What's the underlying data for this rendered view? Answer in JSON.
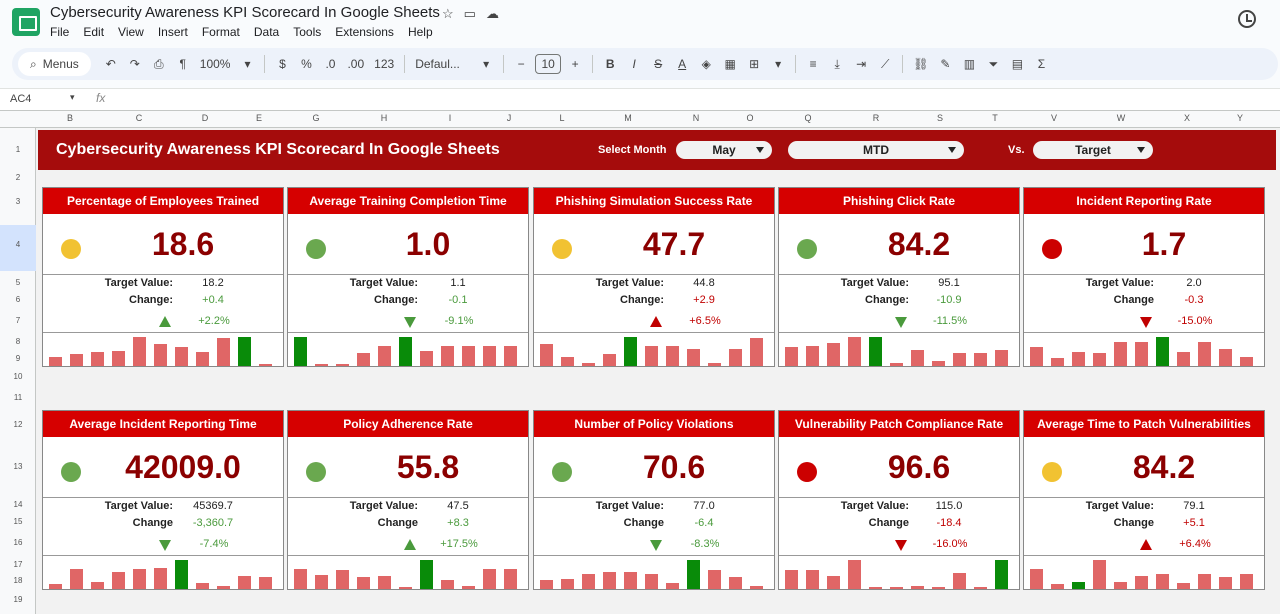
{
  "app": {
    "title": "Cybersecurity Awareness KPI Scorecard In Google Sheets",
    "menu": [
      "File",
      "Edit",
      "View",
      "Insert",
      "Format",
      "Data",
      "Tools",
      "Extensions",
      "Help"
    ]
  },
  "toolbar": {
    "menus_label": "Menus",
    "zoom": "100%",
    "currency": "$",
    "percent": "%",
    "dec_decrease": ".0",
    "dec_increase": ".00",
    "number_format": "123",
    "font": "Defaul...",
    "font_size": "10",
    "minus": "−",
    "plus": "+",
    "bold": "B",
    "italic": "I",
    "strike": "S",
    "text_color": "A",
    "sigma": "Σ"
  },
  "formula_bar": {
    "cell": "AC4",
    "fx": "fx"
  },
  "columns": [
    "B",
    "C",
    "D",
    "E",
    "G",
    "H",
    "I",
    "J",
    "L",
    "M",
    "N",
    "O",
    "Q",
    "R",
    "S",
    "T",
    "V",
    "W",
    "X",
    "Y"
  ],
  "rows": [
    "1",
    "2",
    "3",
    "4",
    "5",
    "6",
    "7",
    "8",
    "9",
    "10",
    "11",
    "12",
    "13",
    "14",
    "15",
    "16",
    "17",
    "18",
    "19"
  ],
  "banner": {
    "title": "Cybersecurity Awareness KPI Scorecard In Google Sheets",
    "select_month_label": "Select Month",
    "month": "May",
    "period": "MTD",
    "vs_label": "Vs.",
    "comparison": "Target"
  },
  "colors": {
    "green": "#6aa84f",
    "yellow": "#f1c232",
    "red": "#cc0000",
    "header_red": "#d60000",
    "banner": "#a50c0c"
  },
  "kpis": [
    {
      "title": "Percentage of Employees Trained",
      "value": "18.6",
      "status": "yellow",
      "target_label": "Target Value:",
      "target": "18.2",
      "change_label": "Change:",
      "change": "+0.4",
      "change_sign": "pos",
      "pct": "+2.2%",
      "pct_sign": "pos",
      "trend": "up",
      "spark": [
        8,
        10,
        12,
        13,
        25,
        19,
        16,
        12,
        24,
        25,
        2
      ],
      "spark_hi": 9
    },
    {
      "title": "Average Training Completion Time",
      "value": "1.0",
      "status": "green",
      "target_label": "Target Value:",
      "target": "1.1",
      "change_label": "Change:",
      "change": "-0.1",
      "change_sign": "pos",
      "pct": "-9.1%",
      "pct_sign": "pos",
      "trend": "down",
      "spark": [
        25,
        2,
        2,
        11,
        17,
        25,
        13,
        17,
        17,
        17,
        17
      ],
      "spark_hi": [
        0,
        5
      ]
    },
    {
      "title": "Phishing Simulation Success Rate",
      "value": "47.7",
      "status": "yellow",
      "target_label": "Target Value:",
      "target": "44.8",
      "change_label": "Change:",
      "change": "+2.9",
      "change_sign": "neg",
      "pct": "+6.5%",
      "pct_sign": "neg",
      "trend": "up",
      "spark": [
        19,
        8,
        3,
        10,
        25,
        17,
        17,
        15,
        3,
        15,
        24
      ],
      "spark_hi": 4
    },
    {
      "title": "Phishing Click Rate",
      "value": "84.2",
      "status": "green",
      "target_label": "Target Value:",
      "target": "95.1",
      "change_label": "Change:",
      "change": "-10.9",
      "change_sign": "pos",
      "pct": "-11.5%",
      "pct_sign": "pos",
      "trend": "down",
      "spark": [
        16,
        17,
        20,
        25,
        25,
        3,
        14,
        4,
        11,
        11,
        14
      ],
      "spark_hi": 4
    },
    {
      "title": "Incident Reporting Rate",
      "value": "1.7",
      "status": "red",
      "target_label": "Target Value:",
      "target": "2.0",
      "change_label": "Change",
      "change": "-0.3",
      "change_sign": "neg",
      "pct": "-15.0%",
      "pct_sign": "neg",
      "trend": "down",
      "spark": [
        16,
        7,
        12,
        11,
        21,
        21,
        25,
        12,
        21,
        15,
        8
      ],
      "spark_hi": 6
    },
    {
      "title": "Average Incident Reporting Time",
      "value": "42009.0",
      "status": "green",
      "target_label": "Target Value:",
      "target": "45369.7",
      "change_label": "Change",
      "change": "-3,360.7",
      "change_sign": "pos",
      "pct": "-7.4%",
      "pct_sign": "pos",
      "trend": "down",
      "spark": [
        4,
        17,
        6,
        15,
        17,
        18,
        25,
        5,
        3,
        11,
        10
      ],
      "spark_hi": 6
    },
    {
      "title": "Policy Adherence Rate",
      "value": "55.8",
      "status": "green",
      "target_label": "Target Value:",
      "target": "47.5",
      "change_label": "Change",
      "change": "+8.3",
      "change_sign": "pos",
      "pct": "+17.5%",
      "pct_sign": "pos",
      "trend": "up",
      "spark": [
        17,
        12,
        16,
        10,
        11,
        2,
        25,
        8,
        3,
        17,
        17
      ],
      "spark_hi": 6
    },
    {
      "title": "Number of Policy Violations",
      "value": "70.6",
      "status": "green",
      "target_label": "Target Value:",
      "target": "77.0",
      "change_label": "Change",
      "change": "-6.4",
      "change_sign": "pos",
      "pct": "-8.3%",
      "pct_sign": "pos",
      "trend": "down",
      "spark": [
        8,
        9,
        13,
        15,
        15,
        13,
        5,
        25,
        16,
        10,
        3
      ],
      "spark_hi": 7
    },
    {
      "title": "Vulnerability Patch Compliance Rate",
      "value": "96.6",
      "status": "red",
      "target_label": "Target Value:",
      "target": "115.0",
      "change_label": "Change",
      "change": "-18.4",
      "change_sign": "neg",
      "pct": "-16.0%",
      "pct_sign": "neg",
      "trend": "down",
      "spark": [
        16,
        16,
        11,
        25,
        2,
        2,
        3,
        2,
        14,
        2,
        25
      ],
      "spark_hi": 10
    },
    {
      "title": "Average Time to Patch Vulnerabilities",
      "value": "84.2",
      "status": "yellow",
      "target_label": "Target Value:",
      "target": "79.1",
      "change_label": "Change",
      "change": "+5.1",
      "change_sign": "neg",
      "pct": "+6.4%",
      "pct_sign": "neg",
      "trend": "up",
      "spark": [
        17,
        4,
        6,
        25,
        6,
        11,
        13,
        5,
        13,
        10,
        13
      ],
      "spark_hi": 2
    }
  ]
}
